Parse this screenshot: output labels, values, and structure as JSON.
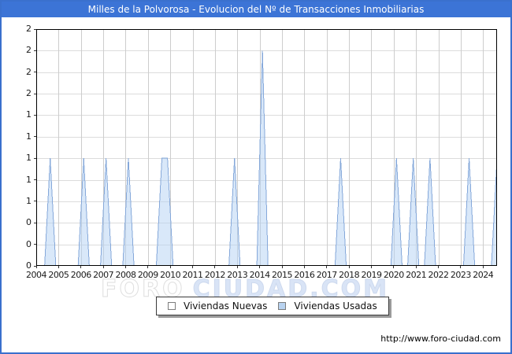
{
  "title_bar": {
    "text": "Milles de la Polvorosa - Evolucion del Nº de Transacciones Inmobiliarias"
  },
  "watermark": {
    "part1": "FORO",
    "part2": "CIUDAD.COM"
  },
  "footer": {
    "url": "http://www.foro-ciudad.com"
  },
  "legend": {
    "items": [
      {
        "label": "Viviendas Nuevas",
        "swatch_fill": "#ffffff",
        "swatch_border": "#7d7d7d"
      },
      {
        "label": "Viviendas Usadas",
        "swatch_fill": "#b9d3f0",
        "swatch_border": "#7d7d7d"
      }
    ]
  },
  "colors": {
    "frame_blue": "#3a70cd",
    "titlebar_blue": "#3c74d6",
    "grid_vertical": "#cdcdcd",
    "grid_horizontal": "#dcdcdc",
    "plot_border": "#000000",
    "area_fill": "rgba(180,210,243,0.5)",
    "area_stroke": "#85a8da"
  },
  "chart_data": {
    "type": "area",
    "title": "Milles de la Polvorosa - Evolucion del Nº de Transacciones Inmobiliarias",
    "xlabel": "",
    "ylabel": "",
    "x_axis": {
      "start_year": 2004,
      "end_year": 2024,
      "tick_labels": [
        "2004",
        "2005",
        "2006",
        "2007",
        "2008",
        "2009",
        "2010",
        "2011",
        "2012",
        "2013",
        "2014",
        "2015",
        "2016",
        "2017",
        "2018",
        "2019",
        "2020",
        "2021",
        "2022",
        "2023",
        "2024"
      ]
    },
    "y_axis": {
      "min": 0,
      "max": 2.2,
      "step": 0.2,
      "tick_labels_top_to_bottom": [
        "2",
        "2",
        "2",
        "2",
        "1",
        "1",
        "1",
        "1",
        "1",
        "0",
        "0",
        "0"
      ]
    },
    "grid": true,
    "legend_position": "bottom-center",
    "first_quarter": "2004-Q1",
    "last_quarter": "2024-Q3",
    "series": [
      {
        "name": "Viviendas Nuevas",
        "values_quarterly": [
          0,
          0,
          0,
          0,
          0,
          0,
          0,
          0,
          0,
          0,
          0,
          0,
          0,
          0,
          0,
          0,
          0,
          0,
          0,
          0,
          0,
          0,
          0,
          0,
          0,
          0,
          0,
          0,
          0,
          0,
          0,
          0,
          0,
          0,
          0,
          0,
          0,
          0,
          0,
          0,
          0,
          0,
          0,
          0,
          0,
          0,
          0,
          0,
          0,
          0,
          0,
          0,
          0,
          0,
          0,
          0,
          0,
          0,
          0,
          0,
          0,
          0,
          0,
          0,
          0,
          0,
          0,
          0,
          0,
          0,
          0,
          0,
          0,
          0,
          0,
          0,
          0,
          0,
          0,
          0,
          0,
          0,
          0
        ]
      },
      {
        "name": "Viviendas Usadas",
        "values_quarterly": [
          0,
          0,
          1,
          0,
          0,
          0,
          0,
          0,
          1,
          0,
          0,
          0,
          1,
          0,
          0,
          0,
          1,
          0,
          0,
          0,
          0,
          0,
          1,
          1,
          0,
          0,
          0,
          0,
          0,
          0,
          0,
          0,
          0,
          0,
          0,
          1,
          0,
          0,
          0,
          0,
          2,
          0,
          0,
          0,
          0,
          0,
          0,
          0,
          0,
          0,
          0,
          0,
          0,
          0,
          1,
          0,
          0,
          0,
          0,
          0,
          0,
          0,
          0,
          0,
          1,
          0,
          0,
          1,
          0,
          0,
          1,
          0,
          0,
          0,
          0,
          0,
          0,
          1,
          0,
          0,
          0,
          0,
          1
        ]
      }
    ],
    "nonzero_points": [
      {
        "series": "Viviendas Usadas",
        "quarter": "2004-Q3",
        "value": 1
      },
      {
        "series": "Viviendas Usadas",
        "quarter": "2006-Q1",
        "value": 1
      },
      {
        "series": "Viviendas Usadas",
        "quarter": "2007-Q1",
        "value": 1
      },
      {
        "series": "Viviendas Usadas",
        "quarter": "2008-Q1",
        "value": 1
      },
      {
        "series": "Viviendas Usadas",
        "quarter": "2009-Q3",
        "value": 1
      },
      {
        "series": "Viviendas Usadas",
        "quarter": "2009-Q4",
        "value": 1
      },
      {
        "series": "Viviendas Usadas",
        "quarter": "2012-Q4",
        "value": 1
      },
      {
        "series": "Viviendas Usadas",
        "quarter": "2014-Q1",
        "value": 2
      },
      {
        "series": "Viviendas Usadas",
        "quarter": "2017-Q3",
        "value": 1
      },
      {
        "series": "Viviendas Usadas",
        "quarter": "2020-Q1",
        "value": 1
      },
      {
        "series": "Viviendas Usadas",
        "quarter": "2020-Q4",
        "value": 1
      },
      {
        "series": "Viviendas Usadas",
        "quarter": "2021-Q3",
        "value": 1
      },
      {
        "series": "Viviendas Usadas",
        "quarter": "2023-Q2",
        "value": 1
      },
      {
        "series": "Viviendas Usadas",
        "quarter": "2024-Q3",
        "value": 1
      }
    ]
  }
}
